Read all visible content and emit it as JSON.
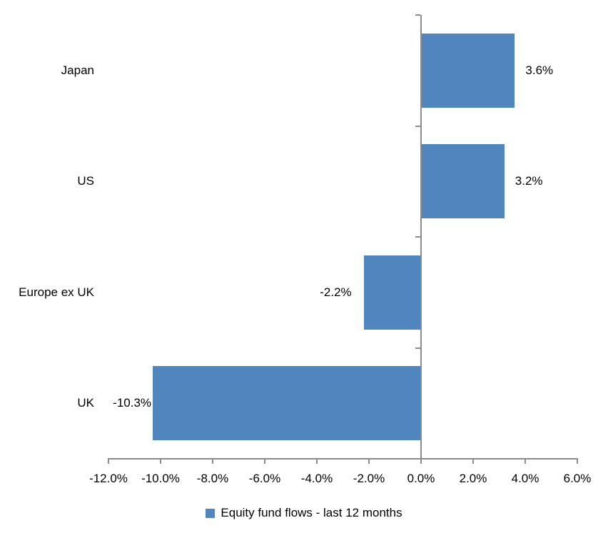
{
  "chart_data": {
    "type": "bar",
    "orientation": "horizontal",
    "title": "",
    "categories": [
      "Japan",
      "US",
      "Europe ex UK",
      "UK"
    ],
    "series": [
      {
        "name": "Equity fund flows - last 12 months",
        "values": [
          3.6,
          3.2,
          -2.2,
          -10.3
        ],
        "data_labels": [
          "3.6%",
          "3.2%",
          "-2.2%",
          "-10.3%"
        ]
      }
    ],
    "xlabel": "",
    "ylabel": "",
    "xlim": [
      -12,
      6
    ],
    "x_tick_values": [
      -12,
      -10,
      -8,
      -6,
      -4,
      -2,
      0,
      2,
      4,
      6
    ],
    "x_tick_labels": [
      "-12.0%",
      "-10.0%",
      "-8.0%",
      "-6.0%",
      "-4.0%",
      "-2.0%",
      "0.0%",
      "2.0%",
      "4.0%",
      "6.0%"
    ],
    "grid": "off",
    "legend_position": "bottom-center",
    "legend_label": "Equity fund flows - last 12 months",
    "bar_color": "#4E86BD",
    "axis_color": "#8B8B8B",
    "text_color": "#000000"
  }
}
